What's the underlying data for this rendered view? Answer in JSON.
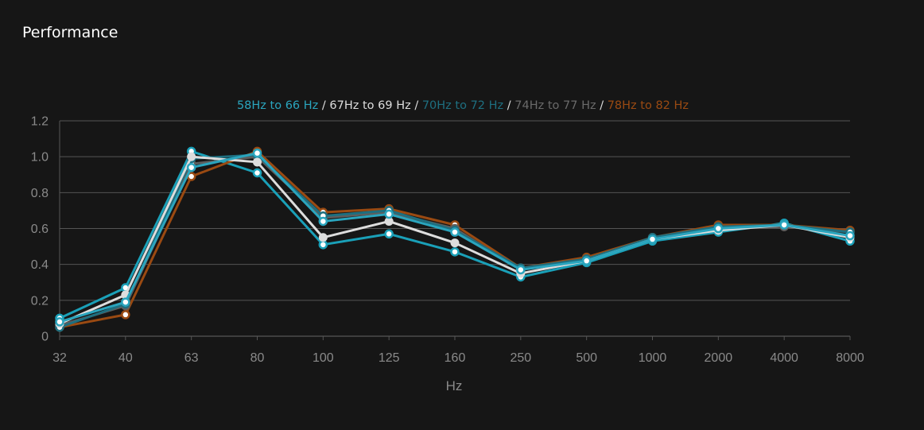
{
  "panel": {
    "title": "Performance"
  },
  "chart_data": {
    "type": "line",
    "title": "",
    "xlabel": "Hz",
    "ylabel": "",
    "categories": [
      "32",
      "40",
      "63",
      "80",
      "100",
      "125",
      "160",
      "250",
      "500",
      "1000",
      "2000",
      "4000",
      "8000"
    ],
    "ylim": [
      0,
      1.2
    ],
    "yticks": [
      "0",
      "0.2",
      "0.4",
      "0.6",
      "0.8",
      "1.0",
      "1.2"
    ],
    "grid": true,
    "legend_position": "top-center",
    "legend_separator": " / ",
    "series": [
      {
        "name": "58Hz to 66 Hz",
        "color": "#2aa5be",
        "values": [
          0.08,
          0.19,
          0.94,
          1.02,
          0.64,
          0.68,
          0.58,
          0.37,
          0.42,
          0.54,
          0.6,
          0.62,
          0.56
        ]
      },
      {
        "name": "67Hz to 69 Hz",
        "color": "#dddddd",
        "values": [
          0.07,
          0.23,
          1.0,
          0.97,
          0.55,
          0.64,
          0.52,
          0.35,
          0.42,
          0.54,
          0.59,
          0.62,
          0.55
        ]
      },
      {
        "name": "70Hz to 72 Hz",
        "color": "#1e6f80",
        "values": [
          0.05,
          0.18,
          0.99,
          1.01,
          0.67,
          0.7,
          0.59,
          0.38,
          0.43,
          0.55,
          0.61,
          0.62,
          0.58
        ]
      },
      {
        "name": "74Hz to 77 Hz",
        "color": "#5e5e5e",
        "values": [
          0.06,
          0.17,
          0.96,
          1.0,
          0.66,
          0.69,
          0.6,
          0.37,
          0.43,
          0.54,
          0.6,
          0.61,
          0.58
        ]
      },
      {
        "name": "78Hz to 82 Hz",
        "color": "#9a4a12",
        "values": [
          0.05,
          0.12,
          0.89,
          1.03,
          0.69,
          0.71,
          0.62,
          0.38,
          0.44,
          0.55,
          0.62,
          0.62,
          0.59
        ]
      },
      {
        "name": "",
        "color": "#1aa0b8",
        "values": [
          0.1,
          0.27,
          1.03,
          0.91,
          0.51,
          0.57,
          0.47,
          0.33,
          0.41,
          0.53,
          0.58,
          0.63,
          0.53
        ]
      }
    ]
  }
}
